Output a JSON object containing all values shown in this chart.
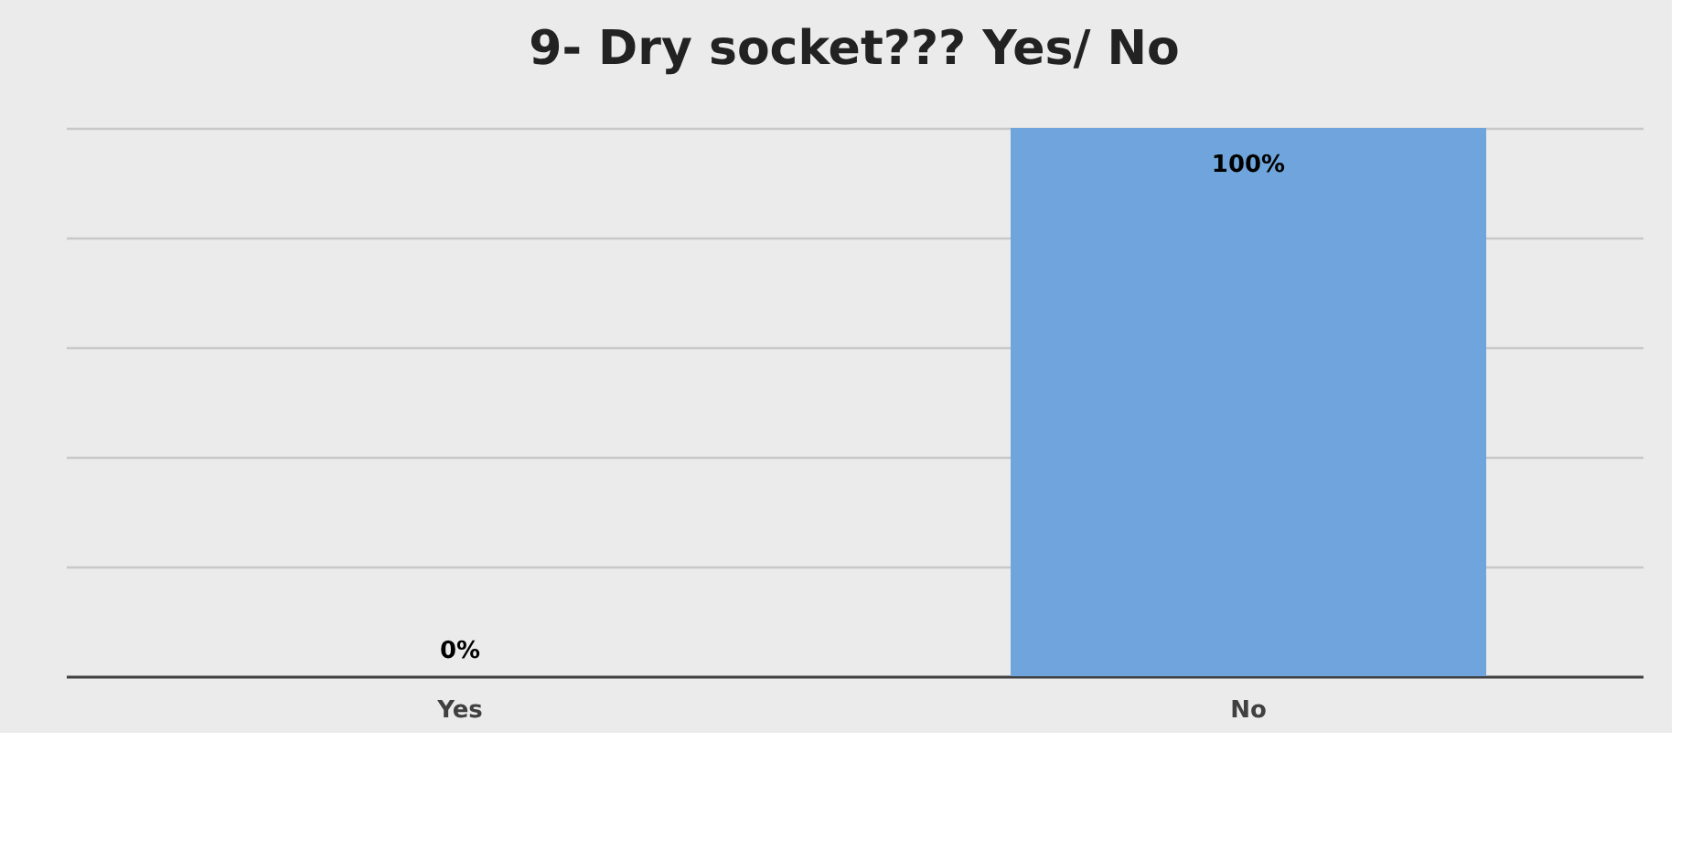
{
  "chart_data": {
    "type": "bar",
    "title": "9- Dry socket??? Yes/ No",
    "categories": [
      "Yes",
      "No"
    ],
    "values": [
      0,
      100
    ],
    "value_labels": [
      "0%",
      "100%"
    ],
    "color": "#6fa5dc",
    "ylim": [
      0,
      100
    ],
    "yticks": [
      {
        "value": 0,
        "label": null
      },
      {
        "value": 20,
        "label": null
      },
      {
        "value": 40,
        "label": null
      },
      {
        "value": 60,
        "label": null
      },
      {
        "value": 80,
        "label": null
      },
      {
        "value": 100,
        "label": null
      }
    ],
    "grid": "y",
    "tick_labels": "x"
  }
}
